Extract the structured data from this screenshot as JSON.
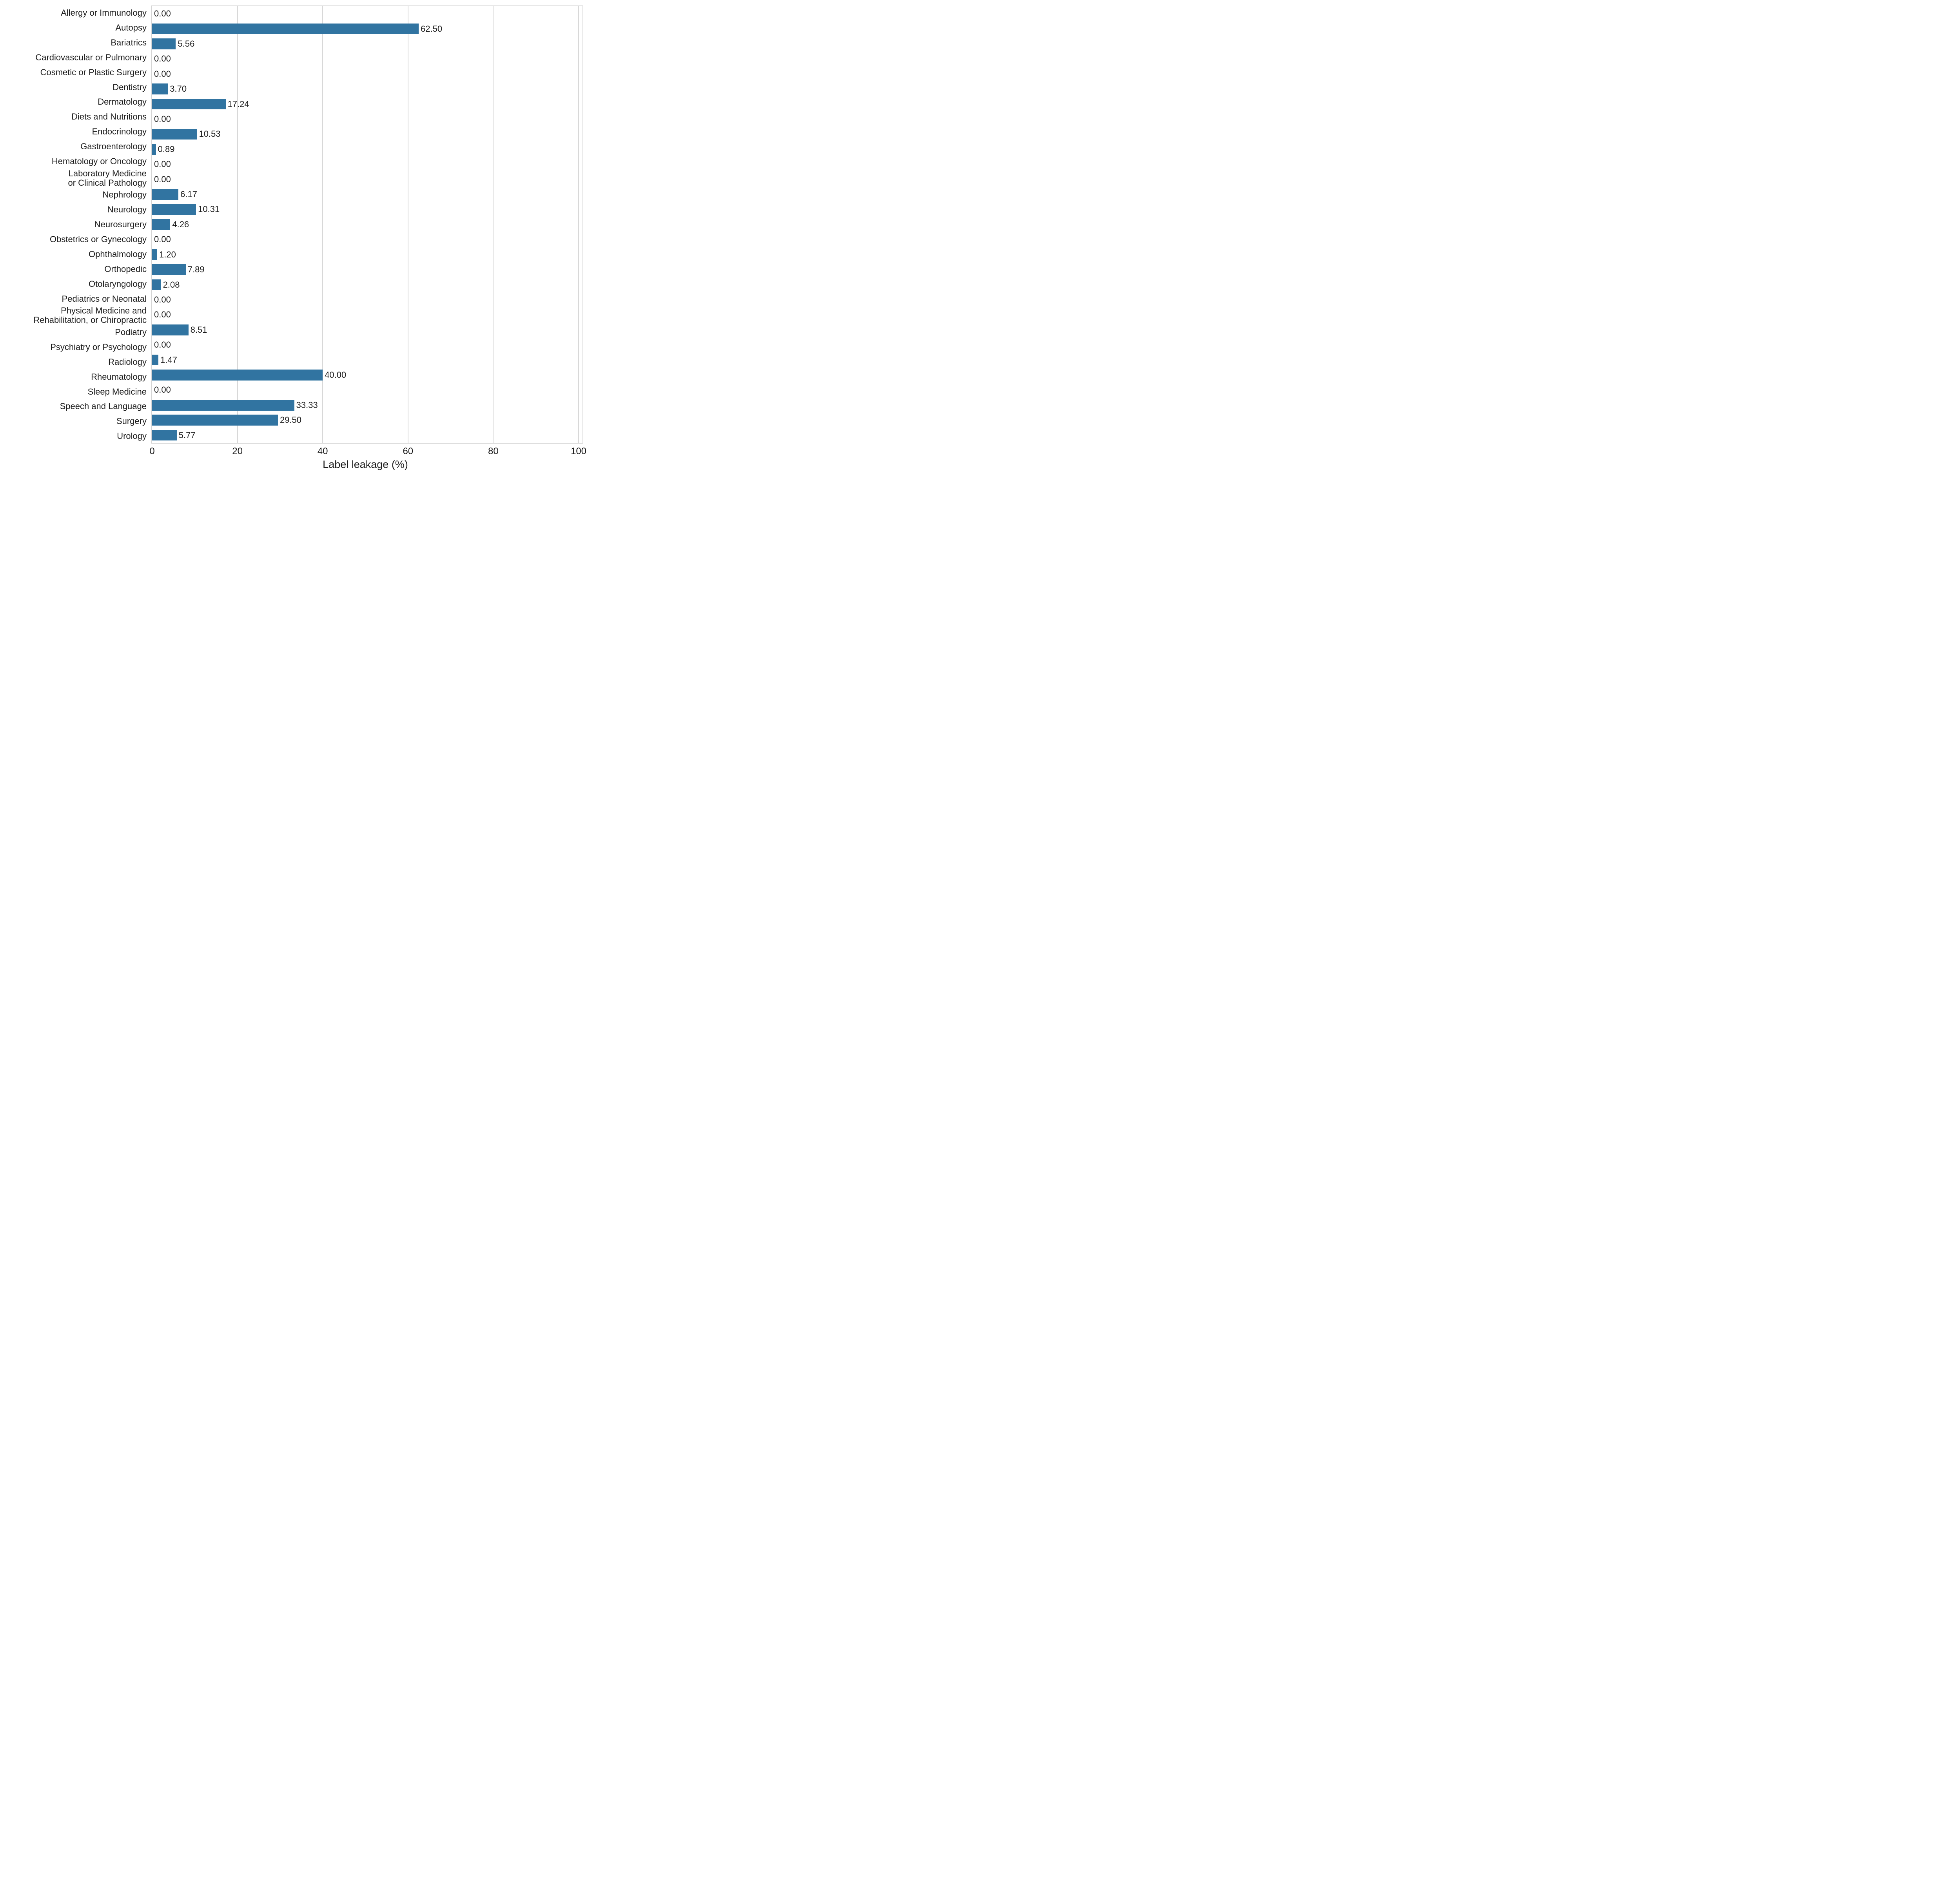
{
  "chart_data": {
    "type": "bar",
    "orientation": "horizontal",
    "title": "",
    "xlabel": "Label leakage (%)",
    "ylabel": "",
    "xlim": [
      0,
      100
    ],
    "x_ticks": [
      0,
      20,
      40,
      60,
      80,
      100
    ],
    "grid": "vertical-only",
    "legend": "none",
    "bar_color": "#3174A1",
    "grid_color": "#D8D8D8",
    "spine_color": "#D4D4D4",
    "text_color": "#1C1C1C",
    "categories": [
      "Allergy or Immunology",
      "Autopsy",
      "Bariatrics",
      "Cardiovascular or Pulmonary",
      "Cosmetic or Plastic Surgery",
      "Dentistry",
      "Dermatology",
      "Diets and Nutritions",
      "Endocrinology",
      "Gastroenterology",
      "Hematology or Oncology",
      "Laboratory Medicine\nor Clinical Pathology",
      "Nephrology",
      "Neurology",
      "Neurosurgery",
      "Obstetrics or Gynecology",
      "Ophthalmology",
      "Orthopedic",
      "Otolaryngology",
      "Pediatrics or Neonatal",
      "Physical Medicine and\nRehabilitation, or Chiropractic",
      "Podiatry",
      "Psychiatry or Psychology",
      "Radiology",
      "Rheumatology",
      "Sleep Medicine",
      "Speech and Language",
      "Surgery",
      "Urology"
    ],
    "values": [
      0.0,
      62.5,
      5.56,
      0.0,
      0.0,
      3.7,
      17.24,
      0.0,
      10.53,
      0.89,
      0.0,
      0.0,
      6.17,
      10.31,
      4.26,
      0.0,
      1.2,
      7.89,
      2.08,
      0.0,
      0.0,
      8.51,
      0.0,
      1.47,
      40.0,
      0.0,
      33.33,
      29.5,
      5.77
    ],
    "value_labels": [
      "0.00",
      "62.50",
      "5.56",
      "0.00",
      "0.00",
      "3.70",
      "17.24",
      "0.00",
      "10.53",
      "0.89",
      "0.00",
      "0.00",
      "6.17",
      "10.31",
      "4.26",
      "0.00",
      "1.20",
      "7.89",
      "2.08",
      "0.00",
      "0.00",
      "8.51",
      "0.00",
      "1.47",
      "40.00",
      "0.00",
      "33.33",
      "29.50",
      "5.77"
    ]
  }
}
